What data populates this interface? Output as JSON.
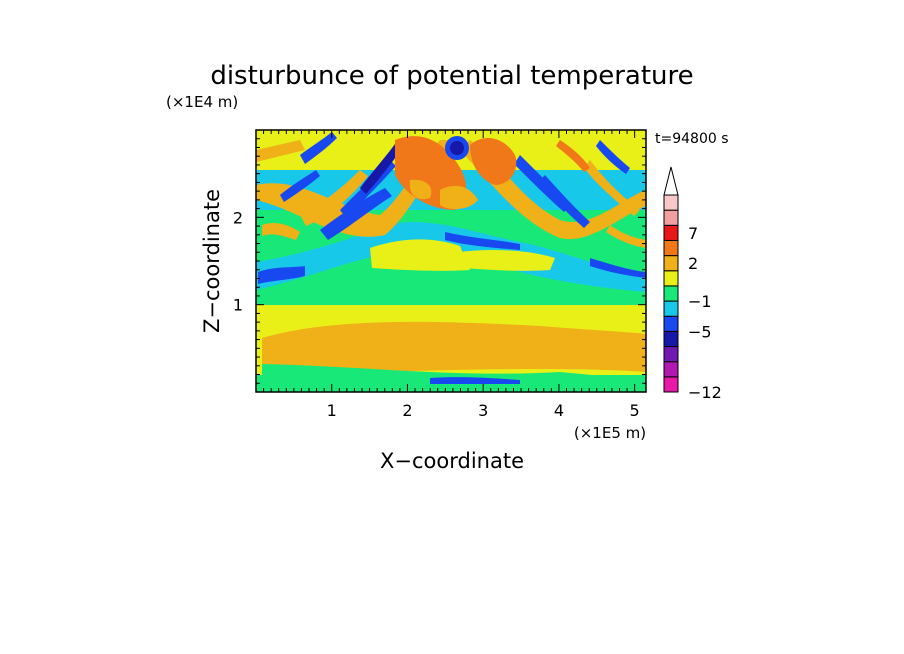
{
  "chart_data": {
    "type": "heatmap",
    "title": "disturbunce of potential temperature",
    "xlabel": "X−coordinate",
    "ylabel": "Z−coordinate",
    "x_unit": "(×1E5 m)",
    "z_unit": "(×1E4 m)",
    "time_label": "t=94800 s",
    "xlim": [
      0,
      5.15
    ],
    "zlim": [
      0,
      3.0
    ],
    "x_ticks": [
      "1",
      "2",
      "3",
      "4",
      "5"
    ],
    "z_ticks": [
      "1",
      "2"
    ],
    "colorbar": {
      "colors": [
        "#e818a8",
        "#b018b0",
        "#7018b0",
        "#1818a8",
        "#1848f0",
        "#18c8e8",
        "#18e878",
        "#e8f018",
        "#f0b018",
        "#f07818",
        "#e81818",
        "#f0a0a0",
        "#f8c8c8"
      ],
      "labels": [
        "−12",
        "−5",
        "−1",
        "2",
        "7"
      ],
      "extend_max": true
    }
  }
}
